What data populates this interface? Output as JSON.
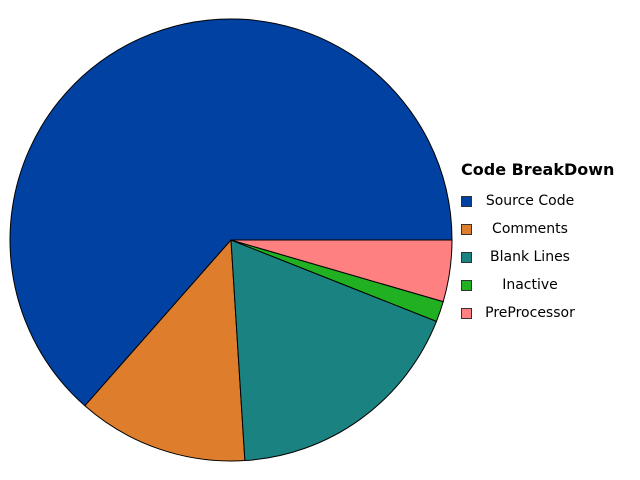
{
  "chart_data": {
    "type": "pie",
    "legend_title": "Code BreakDown",
    "legend_position": "right",
    "slices": [
      {
        "label": "Source Code",
        "value": 63.5,
        "color": "#0041A1"
      },
      {
        "label": "Comments",
        "value": 12.5,
        "color": "#DE7E2C"
      },
      {
        "label": "Blank Lines",
        "value": 18.0,
        "color": "#1B8282"
      },
      {
        "label": "Inactive",
        "value": 1.5,
        "color": "#21B021"
      },
      {
        "label": "PreProcessor",
        "value": 4.5,
        "color": "#FF8080"
      }
    ]
  }
}
